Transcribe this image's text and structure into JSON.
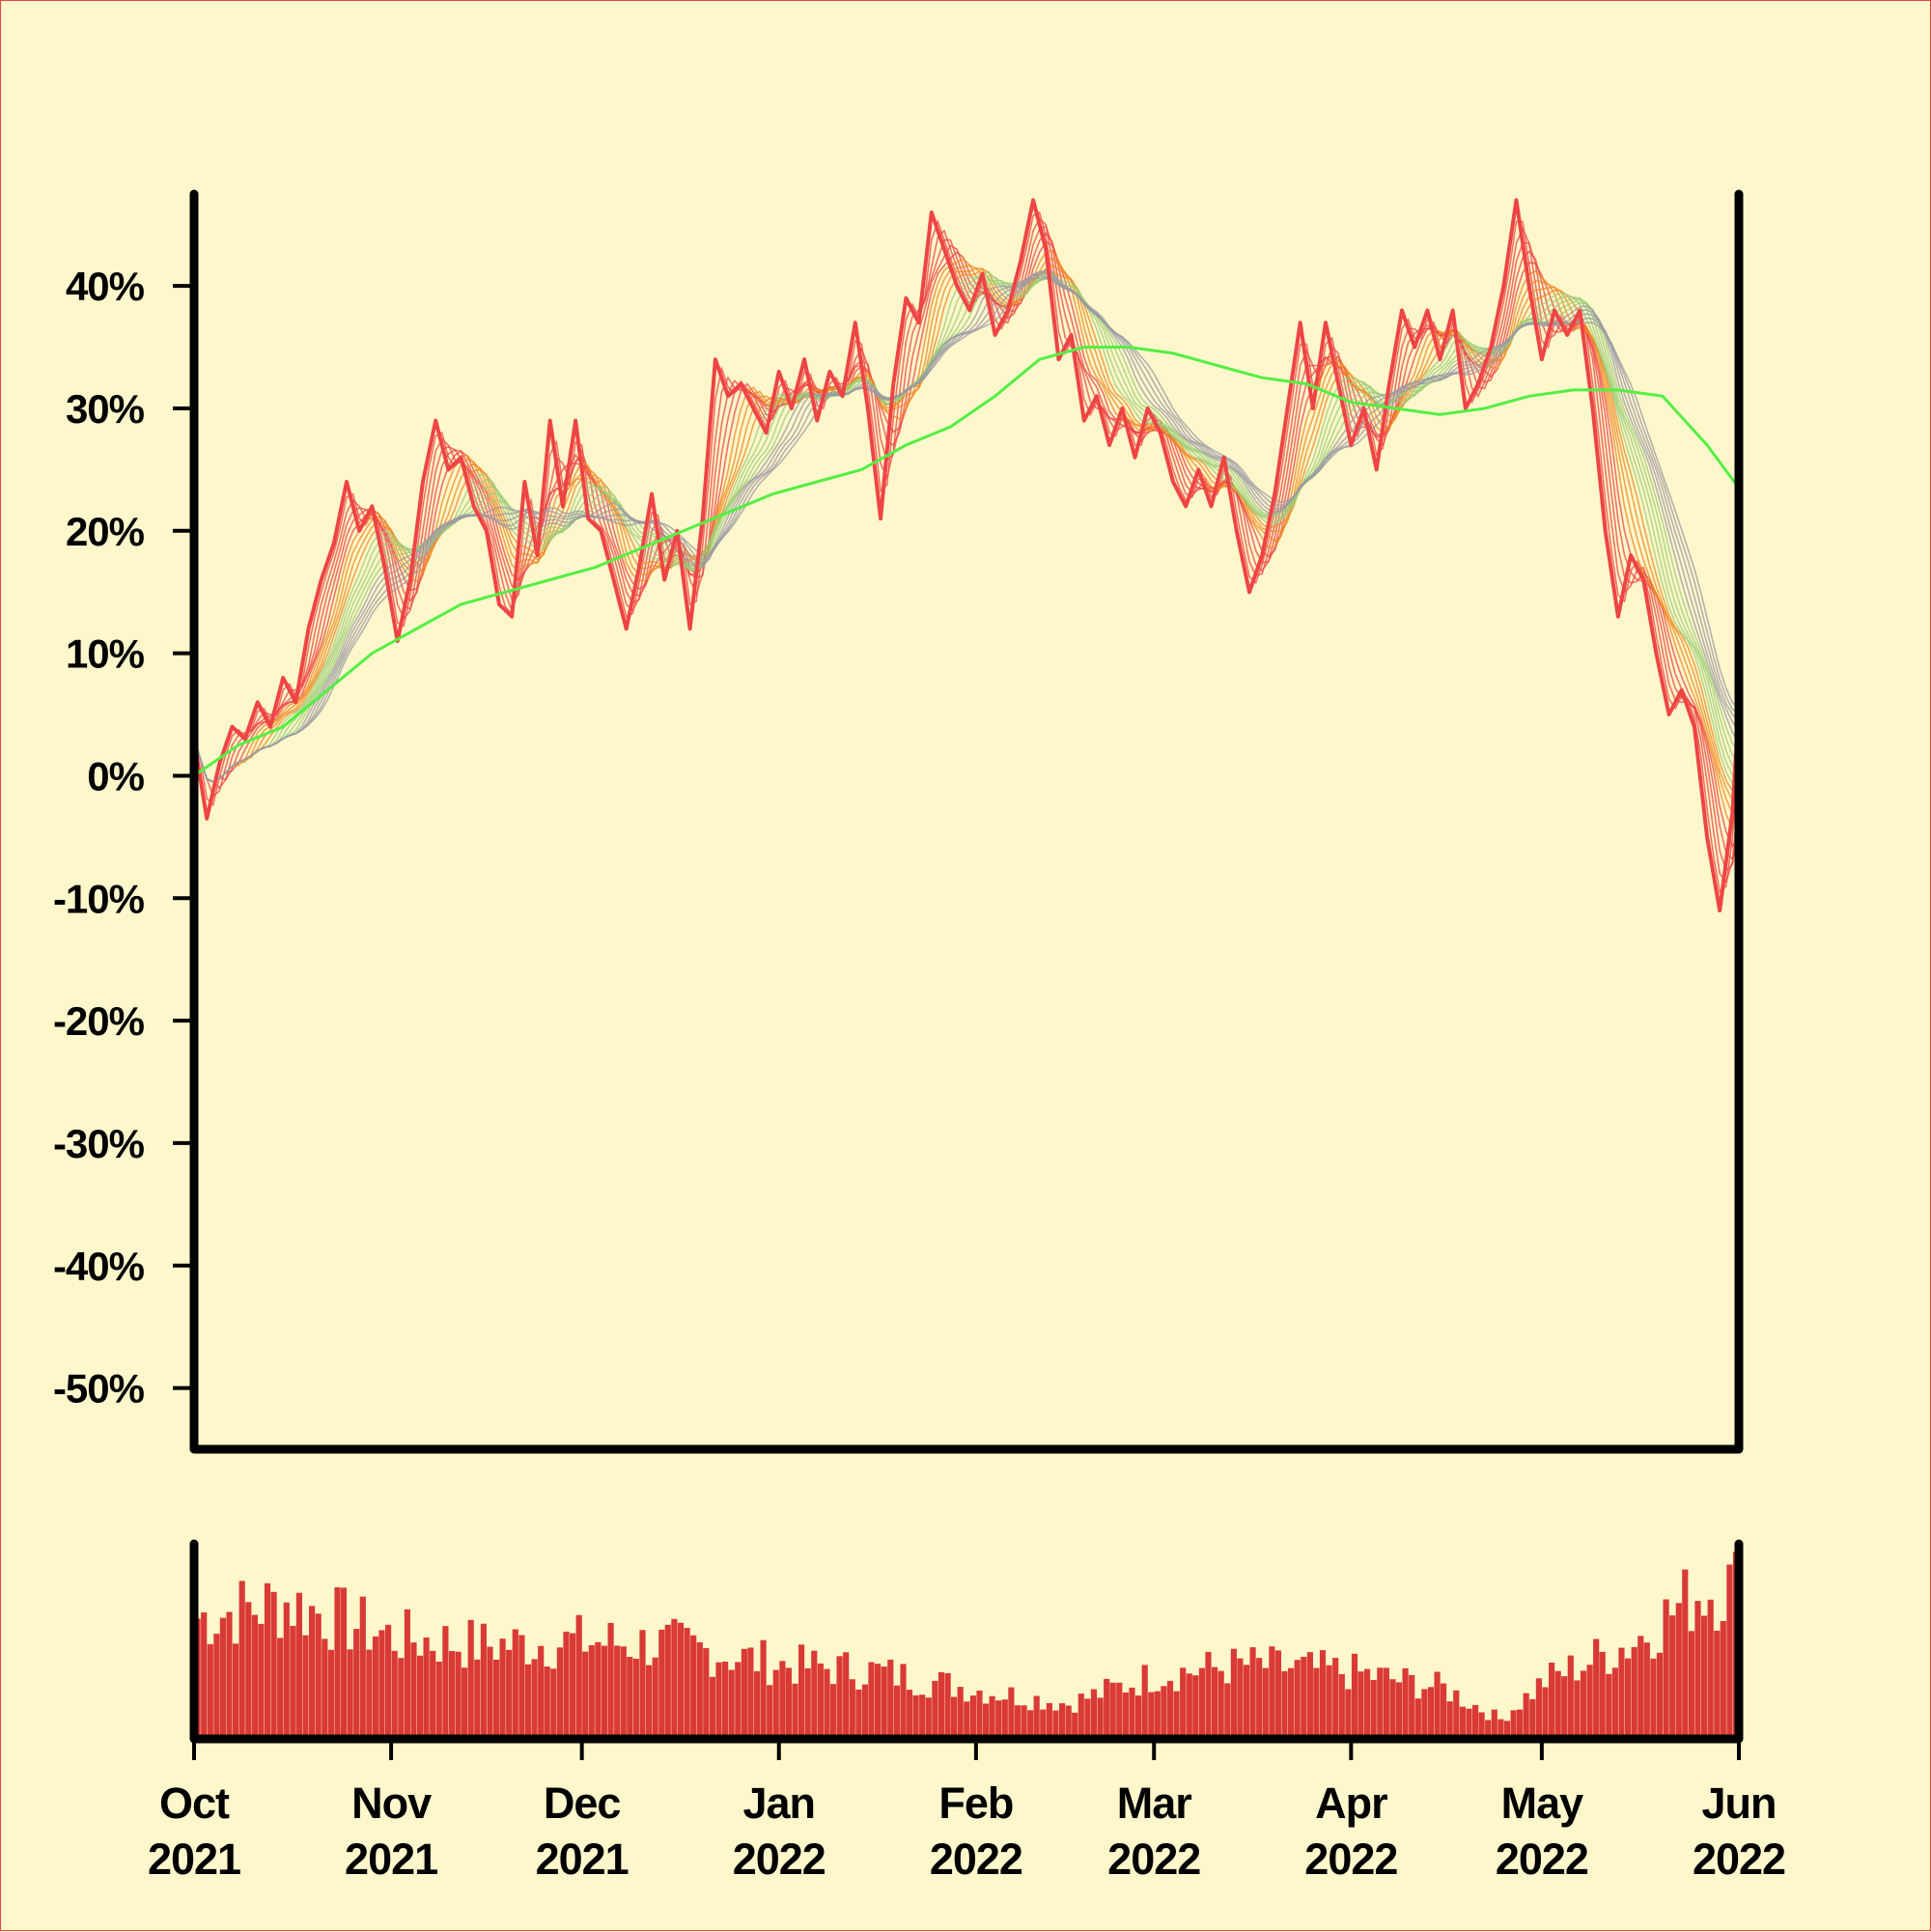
{
  "colors": {
    "background": "#fff7cc",
    "frame": "#000000",
    "volume": "#d93a35",
    "ma_long": "#55ee44",
    "ribbon_red": "#ee4444",
    "ribbon_green": "#99cc77",
    "ribbon_blue": "#4499dd",
    "ribbon_gray": "#999aa3",
    "ribbon_orange": "#ee8822"
  },
  "chart_data": {
    "type": "line",
    "ylabel": "",
    "xlabel": "",
    "ylim": [
      -55,
      47.5
    ],
    "yticks": [
      {
        "value": 40,
        "label": "40%"
      },
      {
        "value": 30,
        "label": "30%"
      },
      {
        "value": 20,
        "label": "20%"
      },
      {
        "value": 10,
        "label": "10%"
      },
      {
        "value": 0,
        "label": "0%"
      },
      {
        "value": -10,
        "label": "-10%"
      },
      {
        "value": -20,
        "label": "-20%"
      },
      {
        "value": -30,
        "label": "-30%"
      },
      {
        "value": -40,
        "label": "-40%"
      },
      {
        "value": -50,
        "label": "-50%"
      }
    ],
    "xlim": [
      "2021-10-01",
      "2022-06-01"
    ],
    "xticks": [
      {
        "date": "2021-10-01",
        "month": "Oct",
        "year": "2021"
      },
      {
        "date": "2021-11-01",
        "month": "Nov",
        "year": "2021"
      },
      {
        "date": "2021-12-01",
        "month": "Dec",
        "year": "2021"
      },
      {
        "date": "2022-01-01",
        "month": "Jan",
        "year": "2022"
      },
      {
        "date": "2022-02-01",
        "month": "Feb",
        "year": "2022"
      },
      {
        "date": "2022-03-01",
        "month": "Mar",
        "year": "2022"
      },
      {
        "date": "2022-04-01",
        "month": "Apr",
        "year": "2022"
      },
      {
        "date": "2022-05-01",
        "month": "May",
        "year": "2022"
      },
      {
        "date": "2022-06-01",
        "month": "Jun",
        "year": "2022"
      }
    ],
    "price_points": [
      [
        "2021-10-01",
        3
      ],
      [
        "2021-10-03",
        -3.5
      ],
      [
        "2021-10-05",
        1
      ],
      [
        "2021-10-07",
        4
      ],
      [
        "2021-10-09",
        3
      ],
      [
        "2021-10-11",
        6
      ],
      [
        "2021-10-13",
        4
      ],
      [
        "2021-10-15",
        8
      ],
      [
        "2021-10-17",
        6
      ],
      [
        "2021-10-19",
        12
      ],
      [
        "2021-10-21",
        16
      ],
      [
        "2021-10-23",
        19
      ],
      [
        "2021-10-25",
        24
      ],
      [
        "2021-10-27",
        20
      ],
      [
        "2021-10-29",
        22
      ],
      [
        "2021-10-31",
        17
      ],
      [
        "2021-11-02",
        11
      ],
      [
        "2021-11-04",
        16
      ],
      [
        "2021-11-06",
        24
      ],
      [
        "2021-11-08",
        29
      ],
      [
        "2021-11-10",
        25
      ],
      [
        "2021-11-12",
        26
      ],
      [
        "2021-11-14",
        22
      ],
      [
        "2021-11-16",
        20
      ],
      [
        "2021-11-18",
        14
      ],
      [
        "2021-11-20",
        13
      ],
      [
        "2021-11-22",
        24
      ],
      [
        "2021-11-24",
        18
      ],
      [
        "2021-11-26",
        29
      ],
      [
        "2021-11-28",
        22
      ],
      [
        "2021-11-30",
        29
      ],
      [
        "2021-12-02",
        21
      ],
      [
        "2021-12-04",
        20
      ],
      [
        "2021-12-06",
        16
      ],
      [
        "2021-12-08",
        12
      ],
      [
        "2021-12-10",
        17
      ],
      [
        "2021-12-12",
        23
      ],
      [
        "2021-12-14",
        16
      ],
      [
        "2021-12-16",
        20
      ],
      [
        "2021-12-18",
        12
      ],
      [
        "2021-12-20",
        21
      ],
      [
        "2021-12-22",
        34
      ],
      [
        "2021-12-24",
        31
      ],
      [
        "2021-12-26",
        32
      ],
      [
        "2021-12-28",
        30
      ],
      [
        "2021-12-30",
        28
      ],
      [
        "2022-01-01",
        33
      ],
      [
        "2022-01-03",
        30
      ],
      [
        "2022-01-05",
        34
      ],
      [
        "2022-01-07",
        29
      ],
      [
        "2022-01-09",
        33
      ],
      [
        "2022-01-11",
        31
      ],
      [
        "2022-01-13",
        37
      ],
      [
        "2022-01-15",
        30
      ],
      [
        "2022-01-17",
        21
      ],
      [
        "2022-01-19",
        32
      ],
      [
        "2022-01-21",
        39
      ],
      [
        "2022-01-23",
        37
      ],
      [
        "2022-01-25",
        46
      ],
      [
        "2022-01-27",
        43
      ],
      [
        "2022-01-29",
        40
      ],
      [
        "2022-01-31",
        38
      ],
      [
        "2022-02-02",
        41
      ],
      [
        "2022-02-04",
        36
      ],
      [
        "2022-02-06",
        38
      ],
      [
        "2022-02-08",
        42
      ],
      [
        "2022-02-10",
        47
      ],
      [
        "2022-02-12",
        43
      ],
      [
        "2022-02-14",
        34
      ],
      [
        "2022-02-16",
        36
      ],
      [
        "2022-02-18",
        29
      ],
      [
        "2022-02-20",
        31
      ],
      [
        "2022-02-22",
        27
      ],
      [
        "2022-02-24",
        30
      ],
      [
        "2022-02-26",
        26
      ],
      [
        "2022-02-28",
        30
      ],
      [
        "2022-03-02",
        28
      ],
      [
        "2022-03-04",
        24
      ],
      [
        "2022-03-06",
        22
      ],
      [
        "2022-03-08",
        25
      ],
      [
        "2022-03-10",
        22
      ],
      [
        "2022-03-12",
        26
      ],
      [
        "2022-03-14",
        20
      ],
      [
        "2022-03-16",
        15
      ],
      [
        "2022-03-18",
        18
      ],
      [
        "2022-03-20",
        23
      ],
      [
        "2022-03-22",
        30
      ],
      [
        "2022-03-24",
        37
      ],
      [
        "2022-03-26",
        30
      ],
      [
        "2022-03-28",
        37
      ],
      [
        "2022-03-30",
        32
      ],
      [
        "2022-04-01",
        27
      ],
      [
        "2022-04-03",
        30
      ],
      [
        "2022-04-05",
        25
      ],
      [
        "2022-04-07",
        32
      ],
      [
        "2022-04-09",
        38
      ],
      [
        "2022-04-11",
        35
      ],
      [
        "2022-04-13",
        38
      ],
      [
        "2022-04-15",
        34
      ],
      [
        "2022-04-17",
        38
      ],
      [
        "2022-04-19",
        30
      ],
      [
        "2022-04-21",
        32
      ],
      [
        "2022-04-23",
        35
      ],
      [
        "2022-04-25",
        40
      ],
      [
        "2022-04-27",
        47
      ],
      [
        "2022-04-29",
        40
      ],
      [
        "2022-05-01",
        34
      ],
      [
        "2022-05-03",
        38
      ],
      [
        "2022-05-05",
        36
      ],
      [
        "2022-05-07",
        38
      ],
      [
        "2022-05-09",
        30
      ],
      [
        "2022-05-11",
        20
      ],
      [
        "2022-05-13",
        13
      ],
      [
        "2022-05-15",
        18
      ],
      [
        "2022-05-17",
        16
      ],
      [
        "2022-05-19",
        10
      ],
      [
        "2022-05-21",
        5
      ],
      [
        "2022-05-23",
        7
      ],
      [
        "2022-05-25",
        4
      ],
      [
        "2022-05-27",
        -5
      ],
      [
        "2022-05-29",
        -11
      ],
      [
        "2022-05-31",
        -3
      ],
      [
        "2022-06-01",
        6
      ]
    ],
    "ma_long": [
      [
        "2021-10-01",
        0
      ],
      [
        "2021-10-08",
        2.5
      ],
      [
        "2021-10-15",
        4
      ],
      [
        "2021-10-22",
        7
      ],
      [
        "2021-10-29",
        10
      ],
      [
        "2021-11-05",
        12
      ],
      [
        "2021-11-12",
        14
      ],
      [
        "2021-11-19",
        15
      ],
      [
        "2021-11-26",
        16
      ],
      [
        "2021-12-03",
        17
      ],
      [
        "2021-12-10",
        18.5
      ],
      [
        "2021-12-17",
        20
      ],
      [
        "2021-12-24",
        21.5
      ],
      [
        "2021-12-31",
        23
      ],
      [
        "2022-01-07",
        24
      ],
      [
        "2022-01-14",
        25
      ],
      [
        "2022-01-21",
        27
      ],
      [
        "2022-01-28",
        28.5
      ],
      [
        "2022-02-04",
        31
      ],
      [
        "2022-02-11",
        34
      ],
      [
        "2022-02-18",
        35
      ],
      [
        "2022-02-25",
        35
      ],
      [
        "2022-03-04",
        34.5
      ],
      [
        "2022-03-11",
        33.5
      ],
      [
        "2022-03-18",
        32.5
      ],
      [
        "2022-03-25",
        32
      ],
      [
        "2022-04-01",
        30.5
      ],
      [
        "2022-04-08",
        30
      ],
      [
        "2022-04-15",
        29.5
      ],
      [
        "2022-04-22",
        30
      ],
      [
        "2022-04-29",
        31
      ],
      [
        "2022-05-06",
        31.5
      ],
      [
        "2022-05-13",
        31.5
      ],
      [
        "2022-05-20",
        31
      ],
      [
        "2022-05-27",
        27
      ],
      [
        "2022-06-01",
        23.5
      ]
    ],
    "volume": {
      "ylim": [
        0,
        100
      ],
      "points": [
        [
          "2021-10-01",
          62
        ],
        [
          "2021-10-15",
          70
        ],
        [
          "2021-11-01",
          52
        ],
        [
          "2021-11-15",
          48
        ],
        [
          "2021-12-01",
          50
        ],
        [
          "2021-12-15",
          48
        ],
        [
          "2022-01-01",
          38
        ],
        [
          "2022-01-15",
          35
        ],
        [
          "2022-02-01",
          25
        ],
        [
          "2022-02-15",
          18
        ],
        [
          "2022-03-01",
          33
        ],
        [
          "2022-03-15",
          38
        ],
        [
          "2022-04-01",
          34
        ],
        [
          "2022-04-15",
          26
        ],
        [
          "2022-04-24",
          10
        ],
        [
          "2022-05-01",
          30
        ],
        [
          "2022-05-15",
          50
        ],
        [
          "2022-05-25",
          75
        ],
        [
          "2022-06-01",
          80
        ]
      ]
    }
  }
}
